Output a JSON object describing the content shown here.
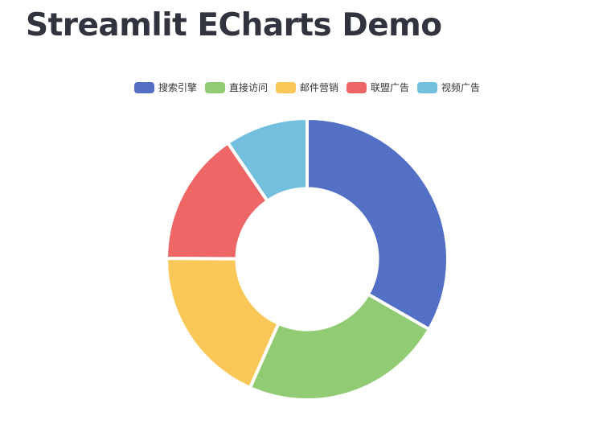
{
  "page": {
    "title": "Streamlit ECharts Demo"
  },
  "chart_data": {
    "type": "pie",
    "variant": "donut",
    "inner_radius_ratio": 0.5,
    "start_angle_deg": 90,
    "direction": "clockwise",
    "legend_position": "top-center",
    "categories": [
      "搜索引擎",
      "直接访问",
      "邮件营销",
      "联盟广告",
      "视频广告"
    ],
    "values": [
      1048,
      735,
      580,
      484,
      300
    ],
    "colors": [
      "#5470c6",
      "#91cc75",
      "#fac858",
      "#ee6666",
      "#73c0de"
    ]
  }
}
